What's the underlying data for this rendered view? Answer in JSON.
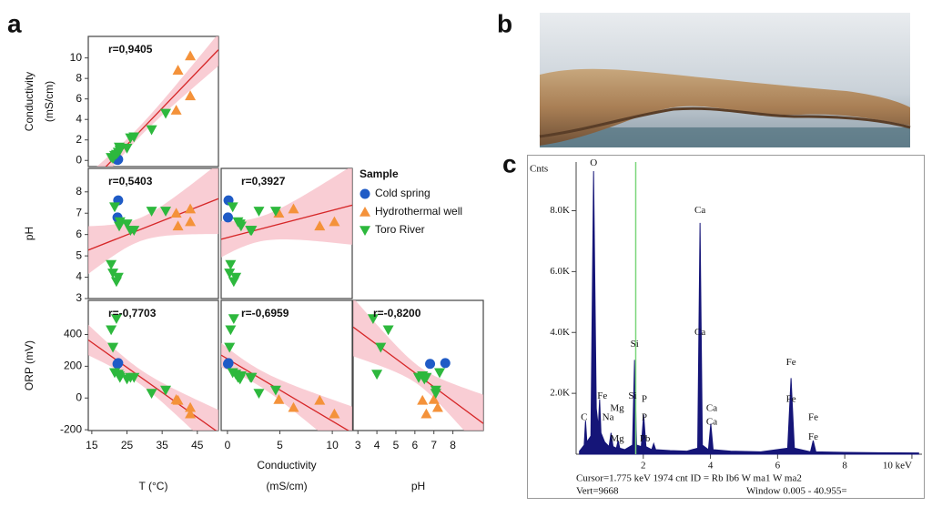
{
  "panel_labels": [
    "a",
    "b",
    "c"
  ],
  "legend": {
    "title": "Sample"
  },
  "chart_data": [
    {
      "type": "scatter",
      "annotation": "r=0,9405",
      "fit": true,
      "fit_color": "#d62728",
      "band_color": "#f7bcc5",
      "xlim": [
        14,
        51
      ],
      "ylim": [
        -0.6,
        12.1
      ],
      "yticks": [
        0,
        2,
        4,
        6,
        8,
        10
      ],
      "ylabel": [
        "Conductivity",
        "(mS/cm)"
      ],
      "series": [
        {
          "name": "Cold spring",
          "color": "#1f5bc6",
          "marker": "circle",
          "x": [
            22.5,
            22.3
          ],
          "values": [
            0.1,
            0.05
          ]
        },
        {
          "name": "Hydrothermal well",
          "color": "#f4923a",
          "marker": "triangle-up",
          "x": [
            39,
            39.5,
            43,
            43
          ],
          "values": [
            4.9,
            8.8,
            10.2,
            6.3
          ]
        },
        {
          "name": "Toro River",
          "color": "#2db83d",
          "marker": "triangle-down",
          "x": [
            20.5,
            21,
            22,
            22.5,
            21.5,
            23,
            22.8,
            25,
            26,
            27,
            32,
            36
          ],
          "values": [
            0.3,
            0.2,
            0.6,
            0.8,
            0.5,
            1.0,
            1.3,
            1.2,
            2.2,
            2.3,
            3.0,
            4.6
          ]
        }
      ]
    },
    {
      "type": "scatter",
      "annotation": "r=0,5403",
      "fit": true,
      "fit_color": "#d62728",
      "band_color": "#f7bcc5",
      "xlim": [
        14,
        51
      ],
      "ylim": [
        3,
        9.1
      ],
      "yticks": [
        3,
        4,
        5,
        6,
        7,
        8
      ],
      "ylabel": [
        "pH"
      ],
      "series": [
        {
          "name": "Cold spring",
          "color": "#1f5bc6",
          "marker": "circle",
          "x": [
            22.5,
            22.3
          ],
          "values": [
            7.6,
            6.8
          ]
        },
        {
          "name": "Hydrothermal well",
          "color": "#f4923a",
          "marker": "triangle-up",
          "x": [
            39,
            39.5,
            43,
            43
          ],
          "values": [
            7.0,
            6.4,
            6.6,
            7.2
          ]
        },
        {
          "name": "Toro River",
          "color": "#2db83d",
          "marker": "triangle-down",
          "x": [
            20.5,
            21,
            22,
            22.5,
            21.5,
            23,
            22.8,
            25,
            26,
            27,
            32,
            36
          ],
          "values": [
            4.6,
            4.2,
            3.8,
            4.0,
            7.3,
            6.6,
            6.4,
            6.5,
            6.2,
            6.2,
            7.1,
            7.1
          ]
        }
      ]
    },
    {
      "type": "scatter",
      "annotation": "r=0,3927",
      "fit": true,
      "fit_color": "#d62728",
      "band_color": "#f7bcc5",
      "xlim": [
        -0.6,
        11.9
      ],
      "ylim": [
        3,
        9.1
      ],
      "series": [
        {
          "name": "Cold spring",
          "color": "#1f5bc6",
          "marker": "circle",
          "x": [
            0.1,
            0.05
          ],
          "values": [
            7.6,
            6.8
          ]
        },
        {
          "name": "Hydrothermal well",
          "color": "#f4923a",
          "marker": "triangle-up",
          "x": [
            4.9,
            8.8,
            10.2,
            6.3
          ],
          "values": [
            7.0,
            6.4,
            6.6,
            7.2
          ]
        },
        {
          "name": "Toro River",
          "color": "#2db83d",
          "marker": "triangle-down",
          "x": [
            0.3,
            0.2,
            0.6,
            0.8,
            0.5,
            1.0,
            1.3,
            1.2,
            2.2,
            2.3,
            3.0,
            4.6
          ],
          "values": [
            4.6,
            4.2,
            3.8,
            4.0,
            7.3,
            6.6,
            6.4,
            6.5,
            6.2,
            6.2,
            7.1,
            7.1
          ]
        }
      ]
    },
    {
      "type": "scatter",
      "annotation": "r=-0,7703",
      "fit": true,
      "fit_color": "#d62728",
      "band_color": "#f7bcc5",
      "xlim": [
        14,
        51
      ],
      "ylim": [
        -205,
        615
      ],
      "xticks": [
        15,
        25,
        35,
        45
      ],
      "yticks": [
        -200,
        0,
        200,
        400
      ],
      "xlabel": [
        "T (°C)"
      ],
      "ylabel": [
        "ORP (mV)"
      ],
      "series": [
        {
          "name": "Cold spring",
          "color": "#1f5bc6",
          "marker": "circle",
          "x": [
            22.5,
            22.3
          ],
          "values": [
            220,
            215
          ]
        },
        {
          "name": "Hydrothermal well",
          "color": "#f4923a",
          "marker": "triangle-up",
          "x": [
            39,
            39.5,
            43,
            43
          ],
          "values": [
            -10,
            -15,
            -100,
            -60
          ]
        },
        {
          "name": "Toro River",
          "color": "#2db83d",
          "marker": "triangle-down",
          "x": [
            20.5,
            21,
            22,
            22.5,
            21.5,
            23,
            22.8,
            25,
            26,
            27,
            32,
            36
          ],
          "values": [
            430,
            320,
            500,
            150,
            160,
            130,
            140,
            120,
            130,
            130,
            30,
            50
          ]
        }
      ]
    },
    {
      "type": "scatter",
      "annotation": "r=-0,6959",
      "fit": true,
      "fit_color": "#d62728",
      "band_color": "#f7bcc5",
      "xlim": [
        -0.6,
        11.9
      ],
      "ylim": [
        -205,
        615
      ],
      "xticks": [
        0,
        5,
        10
      ],
      "xlabel": [
        "Conductivity",
        "(mS/cm)"
      ],
      "series": [
        {
          "name": "Cold spring",
          "color": "#1f5bc6",
          "marker": "circle",
          "x": [
            0.1,
            0.05
          ],
          "values": [
            220,
            215
          ]
        },
        {
          "name": "Hydrothermal well",
          "color": "#f4923a",
          "marker": "triangle-up",
          "x": [
            4.9,
            8.8,
            10.2,
            6.3
          ],
          "values": [
            -10,
            -15,
            -100,
            -60
          ]
        },
        {
          "name": "Toro River",
          "color": "#2db83d",
          "marker": "triangle-down",
          "x": [
            0.3,
            0.2,
            0.6,
            0.8,
            0.5,
            1.0,
            1.3,
            1.2,
            2.2,
            2.3,
            3.0,
            4.6
          ],
          "values": [
            430,
            320,
            500,
            150,
            160,
            130,
            140,
            120,
            130,
            130,
            30,
            50
          ]
        }
      ]
    },
    {
      "type": "scatter",
      "annotation": "r=-0,8200",
      "fit": true,
      "fit_color": "#d62728",
      "band_color": "#f7bcc5",
      "xlim": [
        2.75,
        9.6
      ],
      "ylim": [
        -205,
        615
      ],
      "xticks": [
        3,
        4,
        5,
        6,
        7,
        8
      ],
      "xlabel": [
        "pH"
      ],
      "series": [
        {
          "name": "Cold spring",
          "color": "#1f5bc6",
          "marker": "circle",
          "x": [
            7.6,
            6.8
          ],
          "values": [
            220,
            215
          ]
        },
        {
          "name": "Hydrothermal well",
          "color": "#f4923a",
          "marker": "triangle-up",
          "x": [
            7.0,
            6.4,
            6.6,
            7.2
          ],
          "values": [
            -10,
            -15,
            -100,
            -60
          ]
        },
        {
          "name": "Toro River",
          "color": "#2db83d",
          "marker": "triangle-down",
          "x": [
            4.6,
            4.2,
            3.8,
            4.0,
            7.3,
            6.6,
            6.4,
            6.5,
            6.2,
            6.2,
            7.1,
            7.1
          ],
          "values": [
            430,
            320,
            500,
            150,
            160,
            130,
            140,
            120,
            130,
            130,
            30,
            50
          ]
        }
      ]
    },
    {
      "type": "area",
      "color": "#151578",
      "ylabel": "Cnts",
      "xlim": [
        0,
        10.3
      ],
      "ylim": [
        0,
        9600
      ],
      "xticks": [
        2,
        4,
        6,
        8,
        {
          "value": 10,
          "label": "10 keV"
        }
      ],
      "yticks": [
        {
          "value": 2000,
          "label": "2.0K"
        },
        {
          "value": 4000,
          "label": "4.0K"
        },
        {
          "value": 6000,
          "label": "6.0K"
        },
        {
          "value": 8000,
          "label": "8.0K"
        }
      ],
      "x": [
        0.1,
        0.24,
        0.28,
        0.32,
        0.44,
        0.52,
        0.6,
        0.66,
        0.7,
        0.74,
        0.85,
        0.98,
        1.04,
        1.1,
        1.2,
        1.25,
        1.3,
        1.45,
        1.68,
        1.74,
        1.8,
        1.94,
        2.01,
        2.08,
        2.25,
        2.31,
        2.37,
        2.8,
        3.3,
        3.62,
        3.69,
        3.76,
        3.94,
        4.01,
        4.08,
        4.6,
        5.5,
        6.3,
        6.4,
        6.5,
        6.98,
        7.06,
        7.14,
        8.0,
        9.0,
        10.2
      ],
      "values": [
        100,
        300,
        1100,
        400,
        600,
        9300,
        1500,
        900,
        1800,
        700,
        400,
        250,
        700,
        250,
        200,
        450,
        200,
        150,
        300,
        3100,
        300,
        250,
        1300,
        250,
        150,
        350,
        150,
        120,
        100,
        200,
        7600,
        300,
        150,
        1000,
        150,
        100,
        80,
        200,
        2500,
        200,
        80,
        450,
        80,
        60,
        50,
        40
      ],
      "cursor": {
        "x": 1.775,
        "color": "#7bd67b"
      },
      "annotations": [
        {
          "text": "O",
          "x": 0.52,
          "y": 9550
        },
        {
          "text": "Fe",
          "x": 0.78,
          "y": 1900
        },
        {
          "text": "C",
          "x": 0.24,
          "y": 1200
        },
        {
          "text": "Na",
          "x": 0.95,
          "y": 1200
        },
        {
          "text": "Mg",
          "x": 1.22,
          "y": 1500
        },
        {
          "text": "Mg",
          "x": 1.22,
          "y": 500
        },
        {
          "text": "Si",
          "x": 1.74,
          "y": 3600
        },
        {
          "text": "Si",
          "x": 1.68,
          "y": 1900
        },
        {
          "text": "P",
          "x": 2.03,
          "y": 1800
        },
        {
          "text": "P",
          "x": 2.03,
          "y": 1200
        },
        {
          "text": "Pb",
          "x": 2.05,
          "y": 500
        },
        {
          "text": "Ca",
          "x": 3.69,
          "y": 8000
        },
        {
          "text": "Ca",
          "x": 3.69,
          "y": 4000
        },
        {
          "text": "Ca",
          "x": 4.04,
          "y": 1500
        },
        {
          "text": "Ca",
          "x": 4.04,
          "y": 1050
        },
        {
          "text": "Fe",
          "x": 6.4,
          "y": 3000
        },
        {
          "text": "Fe",
          "x": 6.4,
          "y": 1800
        },
        {
          "text": "Fe",
          "x": 7.06,
          "y": 1200
        },
        {
          "text": "Fe",
          "x": 7.06,
          "y": 550
        }
      ],
      "footer": [
        "Cursor=1.775 keV   1974 cnt  ID = Rb Ib6 W ma1 W ma2",
        "Vert=9668",
        "Window 0.005 - 40.955="
      ]
    }
  ]
}
